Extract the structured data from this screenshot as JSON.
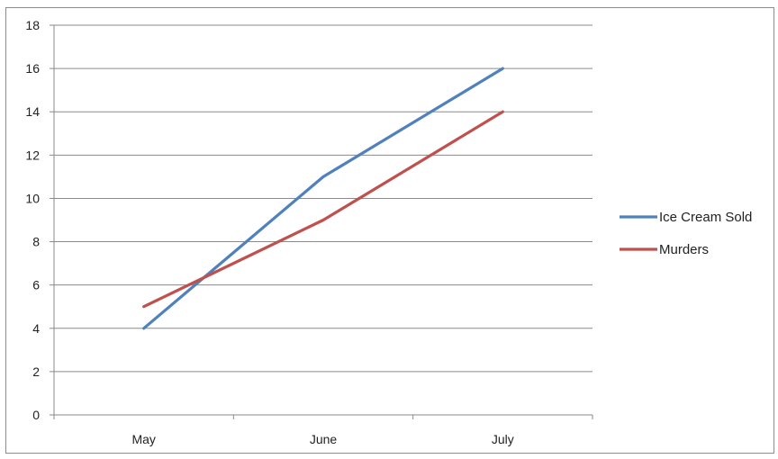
{
  "chart_data": {
    "type": "line",
    "categories": [
      "May",
      "June",
      "July"
    ],
    "series": [
      {
        "name": "Ice Cream Sold",
        "values": [
          4,
          11,
          16
        ],
        "color": "#4f81bd"
      },
      {
        "name": "Murders",
        "values": [
          5,
          9,
          14
        ],
        "color": "#c0504d"
      }
    ],
    "ylim": [
      0,
      18
    ],
    "ytick_step": 2,
    "yticks": [
      "0",
      "2",
      "4",
      "6",
      "8",
      "10",
      "12",
      "14",
      "16",
      "18"
    ],
    "grid": true,
    "legend_position": "right",
    "title": "",
    "xlabel": "",
    "ylabel": ""
  }
}
